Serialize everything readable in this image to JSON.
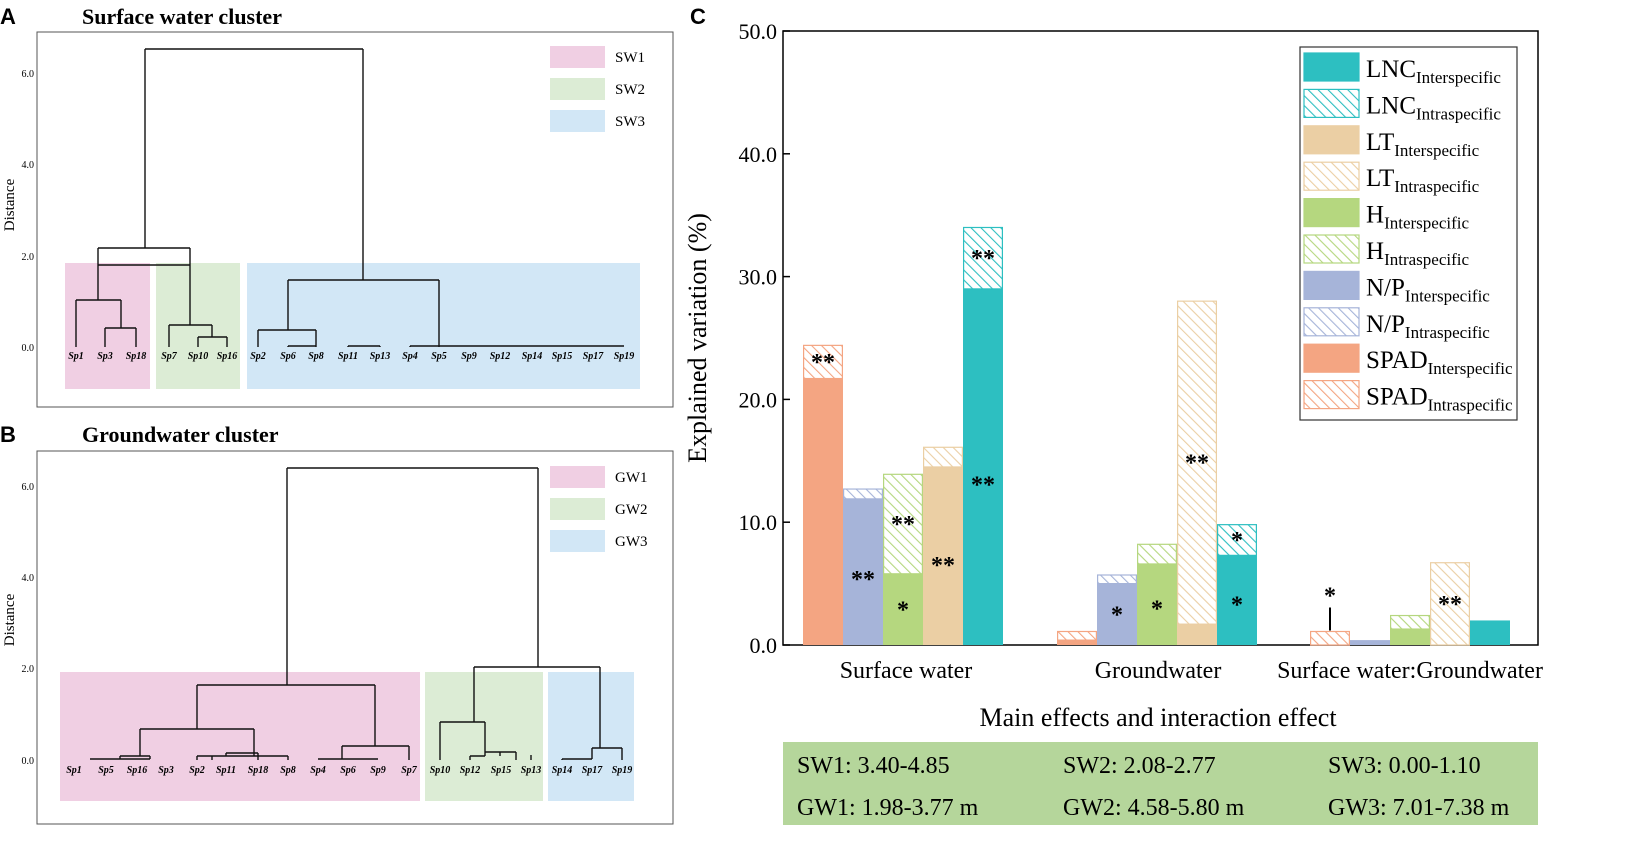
{
  "panels": {
    "a": {
      "letter": "A",
      "title": "Surface water cluster"
    },
    "b": {
      "letter": "B",
      "title": "Groundwater cluster"
    },
    "c": {
      "letter": "C"
    }
  },
  "dendrograms": {
    "ylabel": "Distance",
    "ticks": [
      "6.0",
      "4.0",
      "2.0",
      "0.0"
    ],
    "surface": {
      "leaves": [
        "Sp1",
        "Sp3",
        "Sp18",
        "Sp7",
        "Sp10",
        "Sp16",
        "Sp2",
        "Sp6",
        "Sp8",
        "Sp11",
        "Sp13",
        "Sp4",
        "Sp5",
        "Sp9",
        "Sp12",
        "Sp14",
        "Sp15",
        "Sp17",
        "Sp19"
      ],
      "legend": [
        "SW1",
        "SW2",
        "SW3"
      ],
      "cluster_colors": [
        "#f0cfe3",
        "#dcecd5",
        "#d2e7f6"
      ]
    },
    "ground": {
      "leaves": [
        "Sp1",
        "Sp5",
        "Sp16",
        "Sp3",
        "Sp2",
        "Sp11",
        "Sp18",
        "Sp8",
        "Sp4",
        "Sp6",
        "Sp9",
        "Sp7",
        "Sp10",
        "Sp12",
        "Sp15",
        "Sp13",
        "Sp14",
        "Sp17",
        "Sp19"
      ],
      "legend": [
        "GW1",
        "GW2",
        "GW3"
      ],
      "cluster_colors": [
        "#f0cfe3",
        "#dcecd5",
        "#d2e7f6"
      ]
    }
  },
  "chart_data": {
    "type": "bar",
    "stacked": true,
    "ylabel": "Explained variation (%)",
    "xlabel": "Main effects and interaction effect",
    "ylim": [
      0,
      50
    ],
    "yticks": [
      "0.0",
      "10.0",
      "20.0",
      "30.0",
      "40.0",
      "50.0"
    ],
    "groups": [
      "Surface water",
      "Groundwater",
      "Surface water:Groundwater"
    ],
    "traits": [
      "SPAD",
      "N/P",
      "H",
      "LT",
      "LNC"
    ],
    "colors": {
      "SPAD": "#f4a582",
      "N/P": "#a6b4d9",
      "H": "#b5d77f",
      "LT": "#ebcfa4",
      "LNC": "#2dbfc1"
    },
    "series": [
      {
        "group": "Surface water",
        "trait": "SPAD",
        "inter": 21.7,
        "intra": 2.7,
        "inter_sig": "",
        "intra_sig": "**"
      },
      {
        "group": "Surface water",
        "trait": "N/P",
        "inter": 11.9,
        "intra": 0.8,
        "inter_sig": "**",
        "intra_sig": ""
      },
      {
        "group": "Surface water",
        "trait": "H",
        "inter": 5.8,
        "intra": 8.1,
        "inter_sig": "*",
        "intra_sig": "**"
      },
      {
        "group": "Surface water",
        "trait": "LT",
        "inter": 14.5,
        "intra": 1.6,
        "inter_sig": "**",
        "intra_sig": ""
      },
      {
        "group": "Surface water",
        "trait": "LNC",
        "inter": 29.0,
        "intra": 5.0,
        "inter_sig": "**",
        "intra_sig": "**"
      },
      {
        "group": "Groundwater",
        "trait": "SPAD",
        "inter": 0.4,
        "intra": 0.7,
        "inter_sig": "",
        "intra_sig": ""
      },
      {
        "group": "Groundwater",
        "trait": "N/P",
        "inter": 5.0,
        "intra": 0.7,
        "inter_sig": "*",
        "intra_sig": ""
      },
      {
        "group": "Groundwater",
        "trait": "H",
        "inter": 6.6,
        "intra": 1.6,
        "inter_sig": "*",
        "intra_sig": ""
      },
      {
        "group": "Groundwater",
        "trait": "LT",
        "inter": 1.7,
        "intra": 26.3,
        "inter_sig": "",
        "intra_sig": "**"
      },
      {
        "group": "Groundwater",
        "trait": "LNC",
        "inter": 7.3,
        "intra": 2.5,
        "inter_sig": "*",
        "intra_sig": "*"
      },
      {
        "group": "Surface water:Groundwater",
        "trait": "SPAD",
        "inter": 0.0,
        "intra": 1.1,
        "inter_sig": "",
        "intra_sig": "*"
      },
      {
        "group": "Surface water:Groundwater",
        "trait": "N/P",
        "inter": 0.4,
        "intra": 0.0,
        "inter_sig": "",
        "intra_sig": ""
      },
      {
        "group": "Surface water:Groundwater",
        "trait": "H",
        "inter": 1.3,
        "intra": 1.1,
        "inter_sig": "",
        "intra_sig": ""
      },
      {
        "group": "Surface water:Groundwater",
        "trait": "LT",
        "inter": 0.0,
        "intra": 6.7,
        "inter_sig": "",
        "intra_sig": "**"
      },
      {
        "group": "Surface water:Groundwater",
        "trait": "LNC",
        "inter": 2.0,
        "intra": 0.0,
        "inter_sig": "",
        "intra_sig": ""
      }
    ],
    "legend": [
      {
        "base": "LNC",
        "sub": "Interspecific",
        "color": "#2dbfc1",
        "hatch": false
      },
      {
        "base": "LNC",
        "sub": "Intraspecific",
        "color": "#2dbfc1",
        "hatch": true
      },
      {
        "base": "LT",
        "sub": "Interspecific",
        "color": "#ebcfa4",
        "hatch": false
      },
      {
        "base": "LT",
        "sub": "Intraspecific",
        "color": "#ebcfa4",
        "hatch": true
      },
      {
        "base": "H",
        "sub": "Interspecific",
        "color": "#b5d77f",
        "hatch": false
      },
      {
        "base": "H",
        "sub": "Intraspecific",
        "color": "#b5d77f",
        "hatch": true
      },
      {
        "base": "N/P",
        "sub": "Interspecific",
        "color": "#a6b4d9",
        "hatch": false
      },
      {
        "base": "N/P",
        "sub": "Intraspecific",
        "color": "#a6b4d9",
        "hatch": true
      },
      {
        "base": "SPAD",
        "sub": "Interspecific",
        "color": "#f4a582",
        "hatch": false
      },
      {
        "base": "SPAD",
        "sub": "Intraspecific",
        "color": "#f4a582",
        "hatch": true
      }
    ]
  },
  "range_table": {
    "bg": "#b5d69b",
    "rows": [
      [
        "SW1: 3.40-4.85",
        "SW2: 2.08-2.77",
        "SW3: 0.00-1.10"
      ],
      [
        "GW1: 1.98-3.77 m",
        "GW2: 4.58-5.80 m",
        "GW3: 7.01-7.38 m"
      ]
    ]
  }
}
